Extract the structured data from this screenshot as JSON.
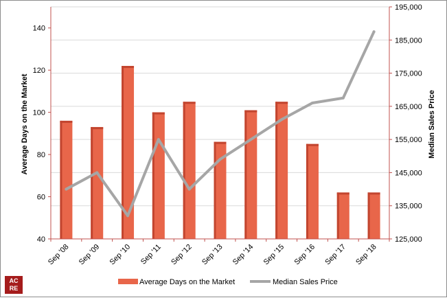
{
  "chart_data": {
    "type": "bar",
    "categories": [
      "Sep '08",
      "Sep '09",
      "Sep '10",
      "Sep '11",
      "Sep '12",
      "Sep '13",
      "Sep '14",
      "Sep '15",
      "Sep '16",
      "Sep '17",
      "Sep '18"
    ],
    "series": [
      {
        "name": "Average Days on the Market",
        "type": "bar",
        "axis": "left",
        "color": "#e8664a",
        "values": [
          96,
          93,
          122,
          100,
          105,
          86,
          101,
          105,
          85,
          62,
          62
        ]
      },
      {
        "name": "Median Sales Price",
        "type": "line",
        "axis": "right",
        "color": "#a6a6a6",
        "values": [
          140000,
          145000,
          132000,
          155000,
          140000,
          149000,
          155000,
          161000,
          166000,
          167500,
          187500
        ]
      }
    ],
    "ylabel": "Average Days on the Market",
    "ylim": [
      40,
      150
    ],
    "yticks": [
      "40",
      "60",
      "80",
      "100",
      "120",
      "140"
    ],
    "y2label": "Median Sales Price",
    "y2lim": [
      125000,
      195000
    ],
    "y2ticks": [
      "125,000",
      "135,000",
      "145,000",
      "155,000",
      "165,000",
      "175,000",
      "185,000",
      "195,000"
    ],
    "grid": true,
    "legend_position": "bottom",
    "axis_color": "#c0504d"
  },
  "logo": {
    "line1": "AC",
    "line2": "RE"
  }
}
